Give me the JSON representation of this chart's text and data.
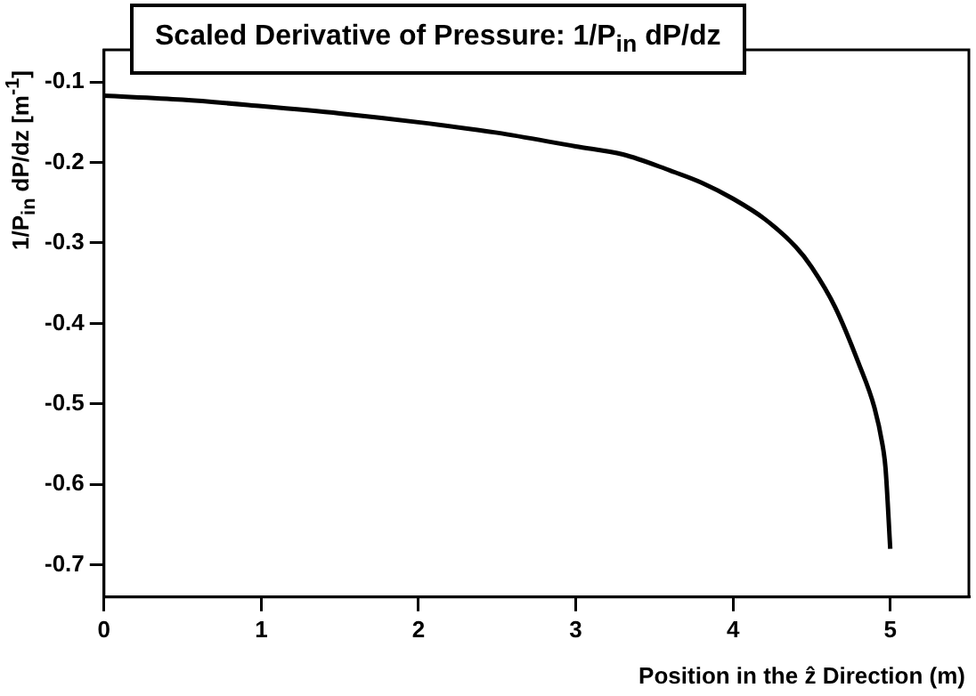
{
  "chart_data": {
    "type": "line",
    "title": "Scaled Derivative of Pressure: 1/P$_{in}$ dP/dz",
    "xlabel": "Position in the ẑ Direction (m)",
    "ylabel": "1/P$_{in}$ dP/dz [m$^{-1}$]",
    "series": [
      {
        "color": "#000000",
        "x": [
          0,
          0.5,
          1,
          1.5,
          2,
          2.5,
          3,
          3.3,
          3.6,
          3.8,
          4,
          4.2,
          4.4,
          4.5,
          4.65,
          4.8,
          4.9,
          4.95,
          4.97,
          5
        ],
        "values": [
          -0.117,
          -0.122,
          -0.13,
          -0.139,
          -0.15,
          -0.163,
          -0.18,
          -0.19,
          -0.21,
          -0.225,
          -0.245,
          -0.27,
          -0.305,
          -0.33,
          -0.38,
          -0.45,
          -0.505,
          -0.55,
          -0.58,
          -0.68
        ]
      }
    ],
    "xlim": [
      0,
      5.5
    ],
    "xticks": [
      0,
      1,
      2,
      3,
      4,
      5
    ],
    "ylim": [
      -0.74,
      -0.06
    ],
    "yticks": [
      -0.7,
      -0.6,
      -0.5,
      -0.4,
      -0.3,
      -0.2,
      -0.1
    ],
    "grid": false,
    "legend": false,
    "marker": "none",
    "line_style": "solid"
  }
}
